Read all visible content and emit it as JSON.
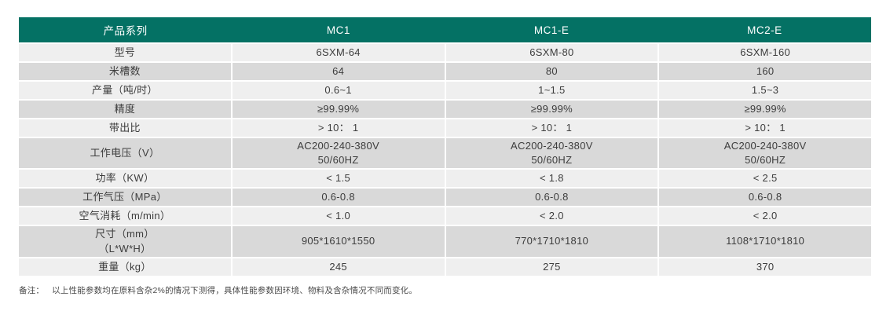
{
  "colors": {
    "header_bg": "#047164",
    "header_text": "#ffffff",
    "row_light": "#efefef",
    "row_dark": "#d9d9d9",
    "body_text": "#3d3d3d"
  },
  "table": {
    "header": [
      "产品系列",
      "MC1",
      "MC1-E",
      "MC2-E"
    ],
    "rows": [
      {
        "label": "型号",
        "values": [
          "6SXM-64",
          "6SXM-80",
          "6SXM-160"
        ]
      },
      {
        "label": "米槽数",
        "values": [
          "64",
          "80",
          "160"
        ]
      },
      {
        "label": "产量（吨/时）",
        "values": [
          "0.6~1",
          "1~1.5",
          "1.5~3"
        ]
      },
      {
        "label": "精度",
        "values": [
          "≥99.99%",
          "≥99.99%",
          "≥99.99%"
        ]
      },
      {
        "label": "带出比",
        "values": [
          "> 10： 1",
          "> 10： 1",
          "> 10： 1"
        ]
      },
      {
        "label": "工作电压（V）",
        "values": [
          "AC200-240-380V\n50/60HZ",
          "AC200-240-380V\n50/60HZ",
          "AC200-240-380V\n50/60HZ"
        ]
      },
      {
        "label": "功率（KW）",
        "values": [
          "< 1.5",
          "< 1.8",
          "< 2.5"
        ]
      },
      {
        "label": "工作气压（MPa）",
        "values": [
          "0.6-0.8",
          "0.6-0.8",
          "0.6-0.8"
        ]
      },
      {
        "label": "空气消耗（m/min）",
        "values": [
          "< 1.0",
          "< 2.0",
          "< 2.0"
        ]
      },
      {
        "label": "尺寸（mm）\n（L*W*H）",
        "values": [
          "905*1610*1550",
          "770*1710*1810",
          "1108*1710*1810"
        ]
      },
      {
        "label": "重量（kg）",
        "values": [
          "245",
          "275",
          "370"
        ]
      }
    ]
  },
  "note": {
    "label": "备注：",
    "text": "以上性能参数均在原料含杂2%的情况下测得，具体性能参数因环境、物料及含杂情况不同而变化。"
  }
}
